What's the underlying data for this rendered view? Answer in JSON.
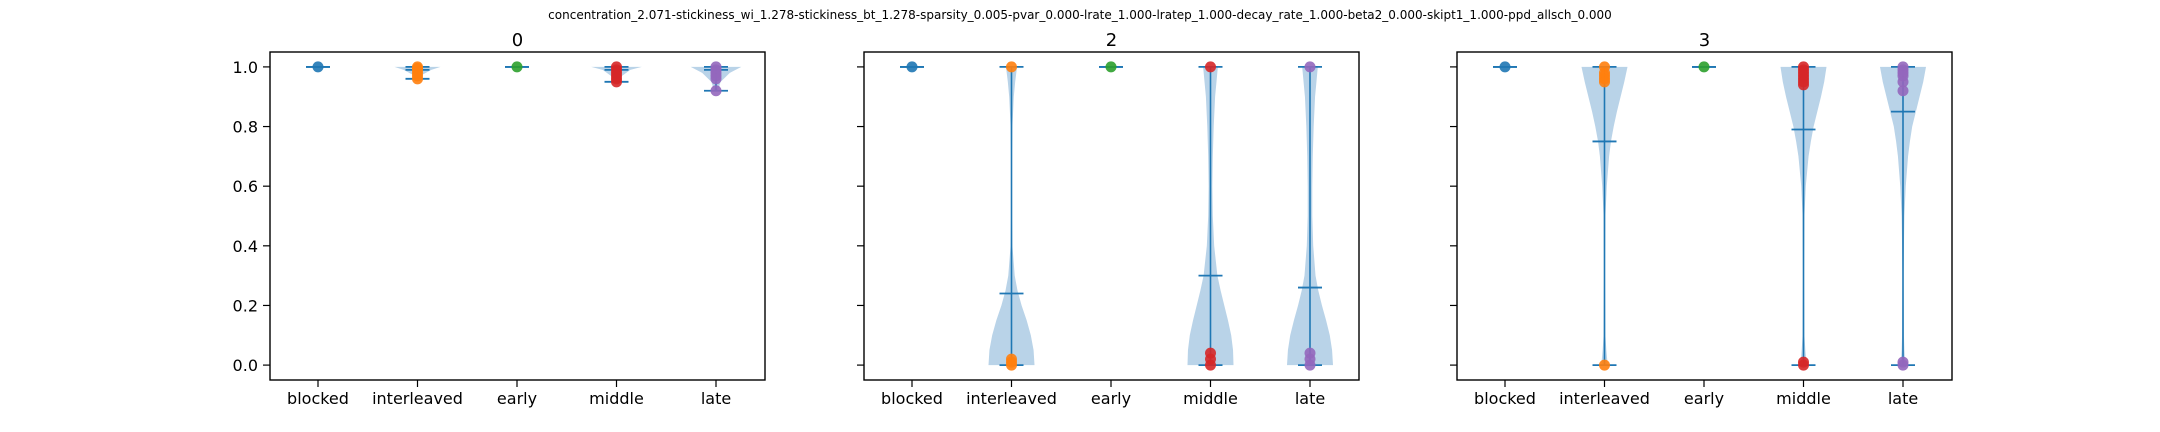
{
  "figure": {
    "suptitle": "concentration_2.071-stickiness_wi_1.278-stickiness_bt_1.278-sparsity_0.005-pvar_0.000-lrate_1.000-lratep_1.000-decay_rate_1.000-beta2_0.000-skipt1_1.000-ppd_allsch_0.000"
  },
  "colors": {
    "violin_fill": "#b9d3e8",
    "line": "#1f77b4",
    "blocked": "#1f77b4",
    "interleaved": "#ff7f0e",
    "early": "#2ca02c",
    "middle": "#d62728",
    "late": "#9467bd"
  },
  "chart_data": [
    {
      "type": "violin",
      "title": "0",
      "categories": [
        "blocked",
        "interleaved",
        "early",
        "middle",
        "late"
      ],
      "ylim": [
        -0.05,
        1.05
      ],
      "yticks": [
        "0.0",
        "0.2",
        "0.4",
        "0.6",
        "0.8",
        "1.0"
      ],
      "show_ytick_labels": true,
      "violins": [
        {
          "category": "blocked",
          "min": 1.0,
          "max": 1.0,
          "mean": 1.0,
          "points": [
            1.0
          ],
          "shape": [
            [
              1.0,
              0.0
            ]
          ]
        },
        {
          "category": "interleaved",
          "min": 0.96,
          "max": 1.0,
          "mean": 0.99,
          "points": [
            1.0,
            0.995,
            0.99,
            0.98,
            0.97,
            0.96
          ],
          "shape": [
            [
              0.96,
              0.04
            ],
            [
              0.975,
              0.12
            ],
            [
              0.99,
              0.3
            ],
            [
              1.0,
              0.5
            ]
          ]
        },
        {
          "category": "early",
          "min": 1.0,
          "max": 1.0,
          "mean": 1.0,
          "points": [
            1.0
          ],
          "shape": [
            [
              1.0,
              0.0
            ]
          ]
        },
        {
          "category": "middle",
          "min": 0.95,
          "max": 1.0,
          "mean": 0.99,
          "points": [
            1.0,
            0.99,
            0.98,
            0.97,
            0.96,
            0.95
          ],
          "shape": [
            [
              0.95,
              0.06
            ],
            [
              0.97,
              0.12
            ],
            [
              0.99,
              0.3
            ],
            [
              1.0,
              0.55
            ]
          ]
        },
        {
          "category": "late",
          "min": 0.92,
          "max": 1.0,
          "mean": 0.99,
          "points": [
            1.0,
            0.99,
            0.98,
            0.97,
            0.96,
            0.92
          ],
          "shape": [
            [
              0.92,
              0.04
            ],
            [
              0.95,
              0.1
            ],
            [
              0.98,
              0.3
            ],
            [
              1.0,
              0.55
            ]
          ]
        }
      ]
    },
    {
      "type": "violin",
      "title": "2",
      "categories": [
        "blocked",
        "interleaved",
        "early",
        "middle",
        "late"
      ],
      "ylim": [
        -0.05,
        1.05
      ],
      "yticks": [
        "0.0",
        "0.2",
        "0.4",
        "0.6",
        "0.8",
        "1.0"
      ],
      "show_ytick_labels": false,
      "violins": [
        {
          "category": "blocked",
          "min": 1.0,
          "max": 1.0,
          "mean": 1.0,
          "points": [
            1.0
          ],
          "shape": [
            [
              1.0,
              0.0
            ]
          ]
        },
        {
          "category": "interleaved",
          "min": 0.0,
          "max": 1.0,
          "mean": 0.24,
          "points": [
            1.0,
            0.02,
            0.01,
            0.0
          ],
          "shape": [
            [
              0.0,
              0.5
            ],
            [
              0.05,
              0.48
            ],
            [
              0.1,
              0.42
            ],
            [
              0.15,
              0.33
            ],
            [
              0.2,
              0.22
            ],
            [
              0.25,
              0.13
            ],
            [
              0.3,
              0.07
            ],
            [
              0.4,
              0.02
            ],
            [
              0.5,
              0.01
            ],
            [
              0.6,
              0.005
            ],
            [
              0.7,
              0.01
            ],
            [
              0.8,
              0.02
            ],
            [
              0.9,
              0.05
            ],
            [
              0.95,
              0.08
            ],
            [
              1.0,
              0.12
            ]
          ]
        },
        {
          "category": "early",
          "min": 1.0,
          "max": 1.0,
          "mean": 1.0,
          "points": [
            1.0
          ],
          "shape": [
            [
              1.0,
              0.0
            ]
          ]
        },
        {
          "category": "middle",
          "min": 0.0,
          "max": 1.0,
          "mean": 0.3,
          "points": [
            1.0,
            0.04,
            0.02,
            0.0
          ],
          "shape": [
            [
              0.0,
              0.5
            ],
            [
              0.05,
              0.49
            ],
            [
              0.1,
              0.45
            ],
            [
              0.15,
              0.38
            ],
            [
              0.2,
              0.3
            ],
            [
              0.25,
              0.22
            ],
            [
              0.3,
              0.15
            ],
            [
              0.4,
              0.08
            ],
            [
              0.5,
              0.05
            ],
            [
              0.6,
              0.04
            ],
            [
              0.7,
              0.05
            ],
            [
              0.8,
              0.07
            ],
            [
              0.9,
              0.1
            ],
            [
              0.95,
              0.13
            ],
            [
              1.0,
              0.16
            ]
          ]
        },
        {
          "category": "late",
          "min": 0.0,
          "max": 1.0,
          "mean": 0.26,
          "points": [
            1.0,
            0.04,
            0.02,
            0.0
          ],
          "shape": [
            [
              0.0,
              0.5
            ],
            [
              0.05,
              0.48
            ],
            [
              0.1,
              0.43
            ],
            [
              0.15,
              0.35
            ],
            [
              0.2,
              0.26
            ],
            [
              0.25,
              0.18
            ],
            [
              0.3,
              0.12
            ],
            [
              0.4,
              0.07
            ],
            [
              0.5,
              0.05
            ],
            [
              0.6,
              0.05
            ],
            [
              0.7,
              0.06
            ],
            [
              0.8,
              0.08
            ],
            [
              0.9,
              0.11
            ],
            [
              0.95,
              0.14
            ],
            [
              1.0,
              0.17
            ]
          ]
        }
      ]
    },
    {
      "type": "violin",
      "title": "3",
      "categories": [
        "blocked",
        "interleaved",
        "early",
        "middle",
        "late"
      ],
      "ylim": [
        -0.05,
        1.05
      ],
      "yticks": [
        "0.0",
        "0.2",
        "0.4",
        "0.6",
        "0.8",
        "1.0"
      ],
      "show_ytick_labels": false,
      "violins": [
        {
          "category": "blocked",
          "min": 1.0,
          "max": 1.0,
          "mean": 1.0,
          "points": [
            1.0
          ],
          "shape": [
            [
              1.0,
              0.0
            ]
          ]
        },
        {
          "category": "interleaved",
          "min": 0.0,
          "max": 1.0,
          "mean": 0.75,
          "points": [
            1.0,
            0.98,
            0.97,
            0.96,
            0.95,
            0.0
          ],
          "shape": [
            [
              0.0,
              0.07
            ],
            [
              0.05,
              0.04
            ],
            [
              0.1,
              0.02
            ],
            [
              0.3,
              0.01
            ],
            [
              0.5,
              0.02
            ],
            [
              0.6,
              0.05
            ],
            [
              0.7,
              0.1
            ],
            [
              0.75,
              0.14
            ],
            [
              0.8,
              0.2
            ],
            [
              0.85,
              0.27
            ],
            [
              0.9,
              0.35
            ],
            [
              0.95,
              0.43
            ],
            [
              1.0,
              0.5
            ]
          ]
        },
        {
          "category": "early",
          "min": 1.0,
          "max": 1.0,
          "mean": 1.0,
          "points": [
            1.0
          ],
          "shape": [
            [
              1.0,
              0.0
            ]
          ]
        },
        {
          "category": "middle",
          "min": 0.0,
          "max": 1.0,
          "mean": 0.79,
          "points": [
            1.0,
            0.99,
            0.98,
            0.97,
            0.96,
            0.95,
            0.94,
            0.01,
            0.0
          ],
          "shape": [
            [
              0.0,
              0.07
            ],
            [
              0.05,
              0.04
            ],
            [
              0.1,
              0.02
            ],
            [
              0.3,
              0.01
            ],
            [
              0.5,
              0.02
            ],
            [
              0.6,
              0.05
            ],
            [
              0.7,
              0.11
            ],
            [
              0.75,
              0.16
            ],
            [
              0.8,
              0.22
            ],
            [
              0.85,
              0.3
            ],
            [
              0.9,
              0.38
            ],
            [
              0.95,
              0.45
            ],
            [
              1.0,
              0.5
            ]
          ]
        },
        {
          "category": "late",
          "min": 0.0,
          "max": 1.0,
          "mean": 0.85,
          "points": [
            1.0,
            0.99,
            0.98,
            0.97,
            0.95,
            0.92,
            0.01,
            0.0
          ],
          "shape": [
            [
              0.0,
              0.05
            ],
            [
              0.05,
              0.03
            ],
            [
              0.1,
              0.02
            ],
            [
              0.3,
              0.01
            ],
            [
              0.5,
              0.03
            ],
            [
              0.6,
              0.06
            ],
            [
              0.7,
              0.11
            ],
            [
              0.75,
              0.15
            ],
            [
              0.8,
              0.2
            ],
            [
              0.85,
              0.28
            ],
            [
              0.9,
              0.36
            ],
            [
              0.95,
              0.44
            ],
            [
              1.0,
              0.5
            ]
          ]
        }
      ]
    }
  ]
}
